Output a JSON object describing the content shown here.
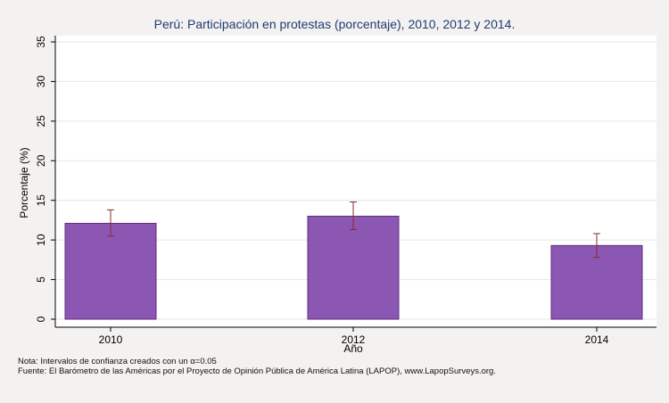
{
  "chart_data": {
    "type": "bar",
    "title": "Perú: Participación en protestas (porcentaje), 2010, 2012 y 2014.",
    "xlabel": "Año",
    "ylabel": "Porcentaje (%)",
    "categories": [
      "2010",
      "2012",
      "2014"
    ],
    "values": [
      12.1,
      13.0,
      9.3
    ],
    "ci_low": [
      10.5,
      11.3,
      7.8
    ],
    "ci_high": [
      13.8,
      14.8,
      10.8
    ],
    "ylim": [
      0,
      35
    ],
    "yticks": [
      0,
      5,
      10,
      15,
      20,
      25,
      30,
      35
    ],
    "grid": true,
    "colors": {
      "bar": "#8b57b3",
      "bar_edge": "#5b2f7c",
      "error_bar": "#8b2a2a",
      "grid": "#e6e6e6",
      "background": "#f3f2f0",
      "plot_background": "#ffffff",
      "title": "#1f3b73"
    }
  },
  "notes": {
    "line1": "Nota: Intervalos de confianza creados con un α=0.05",
    "line2": "Fuente: El Barómetro de las Américas por el Proyecto de Opinión Pública de América Latina (LAPOP), www.LapopSurveys.org."
  }
}
